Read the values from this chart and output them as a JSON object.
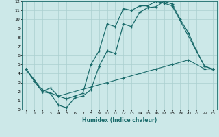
{
  "xlabel": "Humidex (Indice chaleur)",
  "ylabel": "",
  "bg_color": "#cce8e8",
  "line_color": "#1a6b6b",
  "grid_color": "#aacfcf",
  "xlim": [
    -0.5,
    23.5
  ],
  "ylim": [
    0,
    12
  ],
  "xticks": [
    0,
    1,
    2,
    3,
    4,
    5,
    6,
    7,
    8,
    9,
    10,
    11,
    12,
    13,
    14,
    15,
    16,
    17,
    18,
    19,
    20,
    21,
    22,
    23
  ],
  "yticks": [
    0,
    1,
    2,
    3,
    4,
    5,
    6,
    7,
    8,
    9,
    10,
    11,
    12
  ],
  "curve1_x": [
    0,
    1,
    2,
    3,
    4,
    5,
    6,
    7,
    8,
    9,
    10,
    11,
    12,
    13,
    14,
    15,
    16,
    17,
    18,
    19,
    20,
    21,
    22,
    23
  ],
  "curve1_y": [
    4.5,
    3.2,
    2.0,
    1.8,
    0.5,
    0.2,
    1.3,
    1.5,
    2.2,
    4.8,
    6.5,
    6.2,
    9.5,
    9.2,
    10.8,
    11.3,
    11.4,
    12.0,
    11.7,
    10.0,
    8.5,
    6.5,
    4.8,
    4.5
  ],
  "curve2_x": [
    0,
    1,
    2,
    3,
    4,
    5,
    6,
    7,
    8,
    9,
    10,
    11,
    12,
    13,
    14,
    15,
    16,
    17,
    18,
    22,
    23
  ],
  "curve2_y": [
    4.5,
    3.2,
    2.0,
    2.4,
    1.5,
    1.2,
    1.5,
    1.8,
    5.0,
    6.5,
    9.5,
    9.2,
    11.2,
    11.0,
    11.5,
    11.5,
    12.0,
    11.8,
    11.5,
    4.8,
    4.5
  ],
  "curve3_x": [
    0,
    2,
    4,
    6,
    8,
    10,
    12,
    14,
    16,
    18,
    20,
    22,
    23
  ],
  "curve3_y": [
    4.5,
    2.2,
    1.5,
    2.0,
    2.5,
    3.0,
    3.5,
    4.0,
    4.5,
    5.0,
    5.5,
    4.5,
    4.5
  ]
}
